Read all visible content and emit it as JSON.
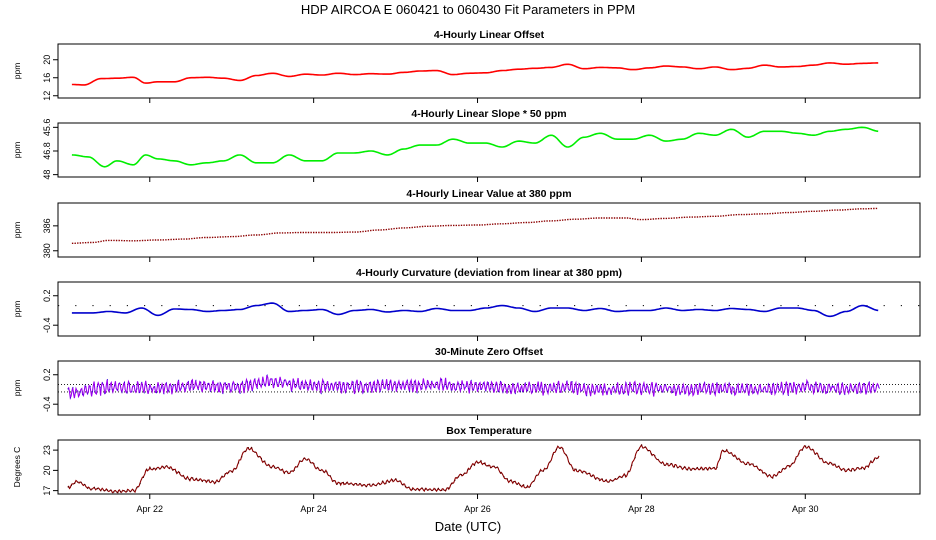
{
  "chart_data": {
    "type": "line",
    "title": "HDP   AIRCOA E   060421 to 060430   Fit Parameters in PPM",
    "xlabel": "Date (UTC)",
    "x_range_days": [
      20.88,
      31.4
    ],
    "x_ticks": [
      {
        "day": 22,
        "label": "Apr 22"
      },
      {
        "day": 24,
        "label": "Apr 24"
      },
      {
        "day": 26,
        "label": "Apr 26"
      },
      {
        "day": 28,
        "label": "Apr 28"
      },
      {
        "day": 30,
        "label": "Apr 30"
      }
    ],
    "panels": [
      {
        "title": "4-Hourly Linear Offset",
        "ylabel": "ppm",
        "color": "#ff0000",
        "ylim": [
          11.5,
          23.5
        ],
        "y_ticks": [
          12,
          16,
          20
        ],
        "style": "line",
        "x": [
          21.05,
          21.2,
          21.4,
          21.6,
          21.8,
          21.95,
          22.1,
          22.3,
          22.5,
          22.7,
          22.9,
          23.1,
          23.3,
          23.5,
          23.7,
          23.9,
          24.1,
          24.3,
          24.5,
          24.7,
          24.9,
          25.1,
          25.3,
          25.5,
          25.7,
          25.9,
          26.1,
          26.3,
          26.5,
          26.7,
          26.9,
          27.1,
          27.3,
          27.5,
          27.7,
          27.9,
          28.1,
          28.3,
          28.5,
          28.7,
          28.9,
          29.1,
          29.3,
          29.5,
          29.7,
          29.9,
          30.1,
          30.3,
          30.5,
          30.7,
          30.9
        ],
        "y": [
          14.5,
          14.4,
          15.8,
          15.9,
          16.1,
          14.8,
          15.1,
          15.1,
          16.0,
          16.1,
          15.9,
          15.4,
          16.5,
          17.0,
          16.3,
          16.8,
          16.6,
          17.0,
          16.7,
          16.9,
          16.8,
          17.2,
          17.5,
          17.6,
          16.7,
          17.0,
          17.1,
          17.6,
          17.9,
          18.1,
          18.3,
          19.0,
          18.0,
          18.3,
          18.2,
          17.8,
          18.2,
          18.6,
          18.4,
          18.0,
          18.4,
          17.8,
          18.1,
          18.8,
          18.4,
          18.5,
          18.8,
          19.3,
          19.0,
          19.2,
          19.3
        ]
      },
      {
        "title": "4-Hourly Linear Slope * 50 ppm",
        "ylabel": "ppm",
        "color": "#00ee00",
        "ylim": [
          48.12,
          45.38
        ],
        "y_ticks": [
          45.6,
          46.8,
          48.0
        ],
        "style": "line",
        "x": [
          21.05,
          21.25,
          21.45,
          21.6,
          21.8,
          21.95,
          22.1,
          22.3,
          22.5,
          22.7,
          22.9,
          23.1,
          23.3,
          23.5,
          23.7,
          23.9,
          24.1,
          24.3,
          24.5,
          24.7,
          24.9,
          25.1,
          25.3,
          25.5,
          25.7,
          25.9,
          26.1,
          26.3,
          26.5,
          26.7,
          26.9,
          27.1,
          27.3,
          27.5,
          27.7,
          27.9,
          28.1,
          28.3,
          28.5,
          28.7,
          28.9,
          29.1,
          29.3,
          29.5,
          29.7,
          29.9,
          30.1,
          30.3,
          30.5,
          30.7,
          30.9
        ],
        "y": [
          47.0,
          47.1,
          47.6,
          47.3,
          47.5,
          47.0,
          47.2,
          47.3,
          47.5,
          47.4,
          47.3,
          47.0,
          47.4,
          47.4,
          47.0,
          47.3,
          47.3,
          46.9,
          46.9,
          46.8,
          47.0,
          46.7,
          46.5,
          46.5,
          46.2,
          46.4,
          46.4,
          46.6,
          46.3,
          46.4,
          46.0,
          46.6,
          46.1,
          45.9,
          46.2,
          46.2,
          46.0,
          46.3,
          46.2,
          45.9,
          46.0,
          45.7,
          46.1,
          45.8,
          45.8,
          45.9,
          46.0,
          45.8,
          45.7,
          45.6,
          45.8
        ]
      },
      {
        "title": "4-Hourly Linear Value at 380 ppm",
        "ylabel": "ppm",
        "color": "#8b0000",
        "ylim": [
          378.5,
          391.5
        ],
        "y_ticks": [
          380,
          386
        ],
        "style": "dots",
        "x": [
          21.05,
          21.3,
          21.5,
          21.8,
          22.1,
          22.4,
          22.7,
          23.0,
          23.3,
          23.6,
          23.9,
          24.2,
          24.5,
          24.8,
          25.1,
          25.4,
          25.7,
          26.0,
          26.3,
          26.6,
          26.9,
          27.2,
          27.5,
          27.8,
          28.0,
          28.3,
          28.6,
          28.9,
          29.2,
          29.5,
          29.8,
          30.1,
          30.4,
          30.7,
          30.9
        ],
        "y": [
          381.8,
          382.0,
          382.5,
          382.4,
          382.6,
          382.8,
          383.2,
          383.4,
          383.8,
          384.3,
          384.4,
          384.4,
          384.5,
          385.0,
          385.5,
          385.9,
          386.1,
          386.2,
          386.5,
          386.8,
          387.2,
          387.6,
          387.9,
          387.9,
          387.5,
          387.8,
          388.1,
          388.3,
          388.7,
          388.9,
          389.2,
          389.5,
          389.8,
          390.1,
          390.2
        ]
      },
      {
        "title": "4-Hourly Curvature (deviation from linear at 380 ppm)",
        "ylabel": "ppm",
        "color": "#0000cc",
        "ylim": [
          -0.62,
          0.48
        ],
        "y_ticks": [
          -0.4,
          0.2
        ],
        "zero_dots": true,
        "style": "line",
        "x": [
          21.05,
          21.3,
          21.5,
          21.7,
          21.9,
          22.1,
          22.3,
          22.5,
          22.7,
          22.9,
          23.1,
          23.3,
          23.5,
          23.7,
          23.9,
          24.1,
          24.3,
          24.5,
          24.7,
          24.9,
          25.1,
          25.3,
          25.5,
          25.7,
          25.9,
          26.1,
          26.3,
          26.5,
          26.7,
          26.9,
          27.1,
          27.3,
          27.5,
          27.7,
          27.9,
          28.1,
          28.3,
          28.5,
          28.7,
          28.9,
          29.1,
          29.3,
          29.5,
          29.7,
          29.9,
          30.1,
          30.3,
          30.5,
          30.7,
          30.9
        ],
        "y": [
          -0.15,
          -0.15,
          -0.12,
          -0.15,
          -0.05,
          -0.2,
          -0.07,
          -0.08,
          -0.12,
          -0.1,
          -0.08,
          0.0,
          0.05,
          -0.12,
          -0.1,
          -0.08,
          -0.18,
          -0.1,
          -0.08,
          -0.13,
          -0.1,
          -0.12,
          -0.06,
          -0.1,
          -0.1,
          -0.05,
          0.0,
          -0.05,
          -0.12,
          -0.05,
          -0.05,
          -0.1,
          -0.06,
          -0.12,
          -0.1,
          -0.1,
          -0.05,
          -0.1,
          -0.08,
          -0.1,
          -0.06,
          -0.08,
          -0.12,
          -0.05,
          -0.05,
          -0.1,
          -0.22,
          -0.12,
          0.0,
          -0.1
        ]
      },
      {
        "title": "30-Minute Zero Offset",
        "ylabel": "ppm",
        "color": "#9900ee",
        "marker_color": "#0000cc",
        "ylim": [
          -0.62,
          0.48
        ],
        "y_ticks": [
          -0.4,
          0.2
        ],
        "ref_lines": [
          0.0,
          -0.15
        ],
        "style": "noisy",
        "noise_amp": 0.14,
        "x": [
          21.0,
          21.5,
          22.0,
          22.5,
          23.0,
          23.5,
          24.0,
          24.5,
          25.0,
          25.5,
          26.0,
          26.5,
          27.0,
          27.5,
          28.0,
          28.5,
          29.0,
          29.5,
          30.0,
          30.5,
          30.9
        ],
        "y": [
          -0.18,
          -0.05,
          -0.08,
          -0.02,
          -0.04,
          0.05,
          -0.02,
          -0.05,
          -0.02,
          -0.02,
          -0.04,
          -0.08,
          -0.06,
          -0.1,
          -0.08,
          -0.1,
          -0.08,
          -0.1,
          -0.05,
          -0.1,
          -0.05
        ]
      },
      {
        "title": "Box Temperature",
        "ylabel": "Degrees C",
        "color": "#8b0000",
        "ylim": [
          16.5,
          24.5
        ],
        "y_ticks": [
          17,
          20,
          23
        ],
        "style": "noisy",
        "noise_amp": 0.25,
        "x": [
          21.0,
          21.1,
          21.3,
          21.6,
          21.8,
          22.0,
          22.2,
          22.5,
          22.8,
          23.0,
          23.2,
          23.5,
          23.7,
          23.9,
          24.1,
          24.3,
          24.7,
          25.0,
          25.2,
          25.6,
          25.8,
          26.0,
          26.2,
          26.4,
          26.6,
          26.8,
          27.0,
          27.2,
          27.6,
          27.8,
          28.0,
          28.3,
          28.6,
          28.9,
          29.0,
          29.3,
          29.6,
          29.8,
          30.0,
          30.3,
          30.5,
          30.7,
          30.9
        ],
        "y": [
          17.4,
          18.3,
          17.3,
          16.9,
          17.0,
          20.2,
          20.5,
          18.7,
          18.3,
          19.9,
          23.2,
          20.5,
          19.7,
          21.7,
          20.0,
          18.1,
          17.8,
          18.5,
          17.2,
          17.1,
          19.3,
          21.2,
          20.5,
          18.4,
          17.5,
          20.0,
          23.4,
          20.0,
          18.4,
          19.2,
          23.5,
          20.9,
          20.2,
          20.3,
          22.9,
          21.0,
          19.1,
          20.6,
          23.5,
          21.0,
          20.0,
          20.3,
          21.9
        ]
      }
    ]
  }
}
